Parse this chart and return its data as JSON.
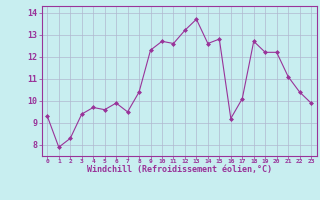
{
  "x": [
    0,
    1,
    2,
    3,
    4,
    5,
    6,
    7,
    8,
    9,
    10,
    11,
    12,
    13,
    14,
    15,
    16,
    17,
    18,
    19,
    20,
    21,
    22,
    23
  ],
  "y": [
    9.3,
    7.9,
    8.3,
    9.4,
    9.7,
    9.6,
    9.9,
    9.5,
    10.4,
    12.3,
    12.7,
    12.6,
    13.2,
    13.7,
    12.6,
    12.8,
    9.2,
    10.1,
    12.7,
    12.2,
    12.2,
    11.1,
    10.4,
    9.9
  ],
  "line_color": "#993399",
  "marker_color": "#993399",
  "bg_color": "#c8eef0",
  "grid_color": "#b0b8d0",
  "xlabel": "Windchill (Refroidissement éolien,°C)",
  "xlabel_color": "#993399",
  "tick_color": "#993399",
  "ylim": [
    7.5,
    14.3
  ],
  "yticks": [
    8,
    9,
    10,
    11,
    12,
    13,
    14
  ],
  "xticks": [
    0,
    1,
    2,
    3,
    4,
    5,
    6,
    7,
    8,
    9,
    10,
    11,
    12,
    13,
    14,
    15,
    16,
    17,
    18,
    19,
    20,
    21,
    22,
    23
  ],
  "spine_color": "#993399"
}
